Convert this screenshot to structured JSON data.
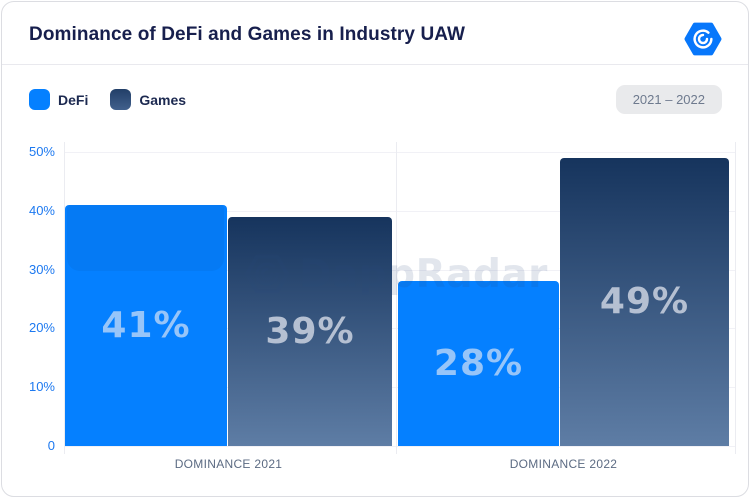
{
  "header": {
    "title": "Dominance of DeFi and Games in Industry UAW",
    "logo_icon": "dappradar-hexagon-spiral",
    "logo_color": "#0777fb"
  },
  "legend": {
    "items": [
      {
        "label": "DeFi",
        "color": "#0580ff"
      },
      {
        "label": "Games",
        "color_gradient": [
          "#223f68",
          "#41608c"
        ]
      }
    ]
  },
  "period_badge": {
    "label": "2021 – 2022"
  },
  "watermark": {
    "text": "DappRadar",
    "icon": "dappradar-hexagon-spiral"
  },
  "chart_data": {
    "type": "bar",
    "title": "Dominance of DeFi and Games in Industry UAW",
    "categories": [
      "DOMINANCE 2021",
      "DOMINANCE 2022"
    ],
    "series": [
      {
        "name": "DeFi",
        "values": [
          41,
          28
        ],
        "value_labels": [
          "41%",
          "28%"
        ],
        "color": "#0580ff",
        "label_color": "#97c5f9"
      },
      {
        "name": "Games",
        "values": [
          39,
          49
        ],
        "value_labels": [
          "39%",
          "49%"
        ],
        "color_gradient": [
          "#16345d",
          "#5e7da5"
        ],
        "label_color": "#b5c0d2"
      }
    ],
    "xlabel": "",
    "ylabel": "",
    "ylim": [
      0,
      50
    ],
    "ytick_values": [
      0,
      10,
      20,
      30,
      40,
      50
    ],
    "ytick_labels": [
      "0",
      "10%",
      "20%",
      "30%",
      "40%",
      "50%"
    ],
    "grid": true,
    "legend_position": "top-left",
    "unit": "percent",
    "styles": {
      "ytick_color": "#1d79f0",
      "xtick_color": "#5c6b83",
      "grid_color": "#f1f1f6",
      "axis_line_color": "#ebecf1"
    }
  }
}
